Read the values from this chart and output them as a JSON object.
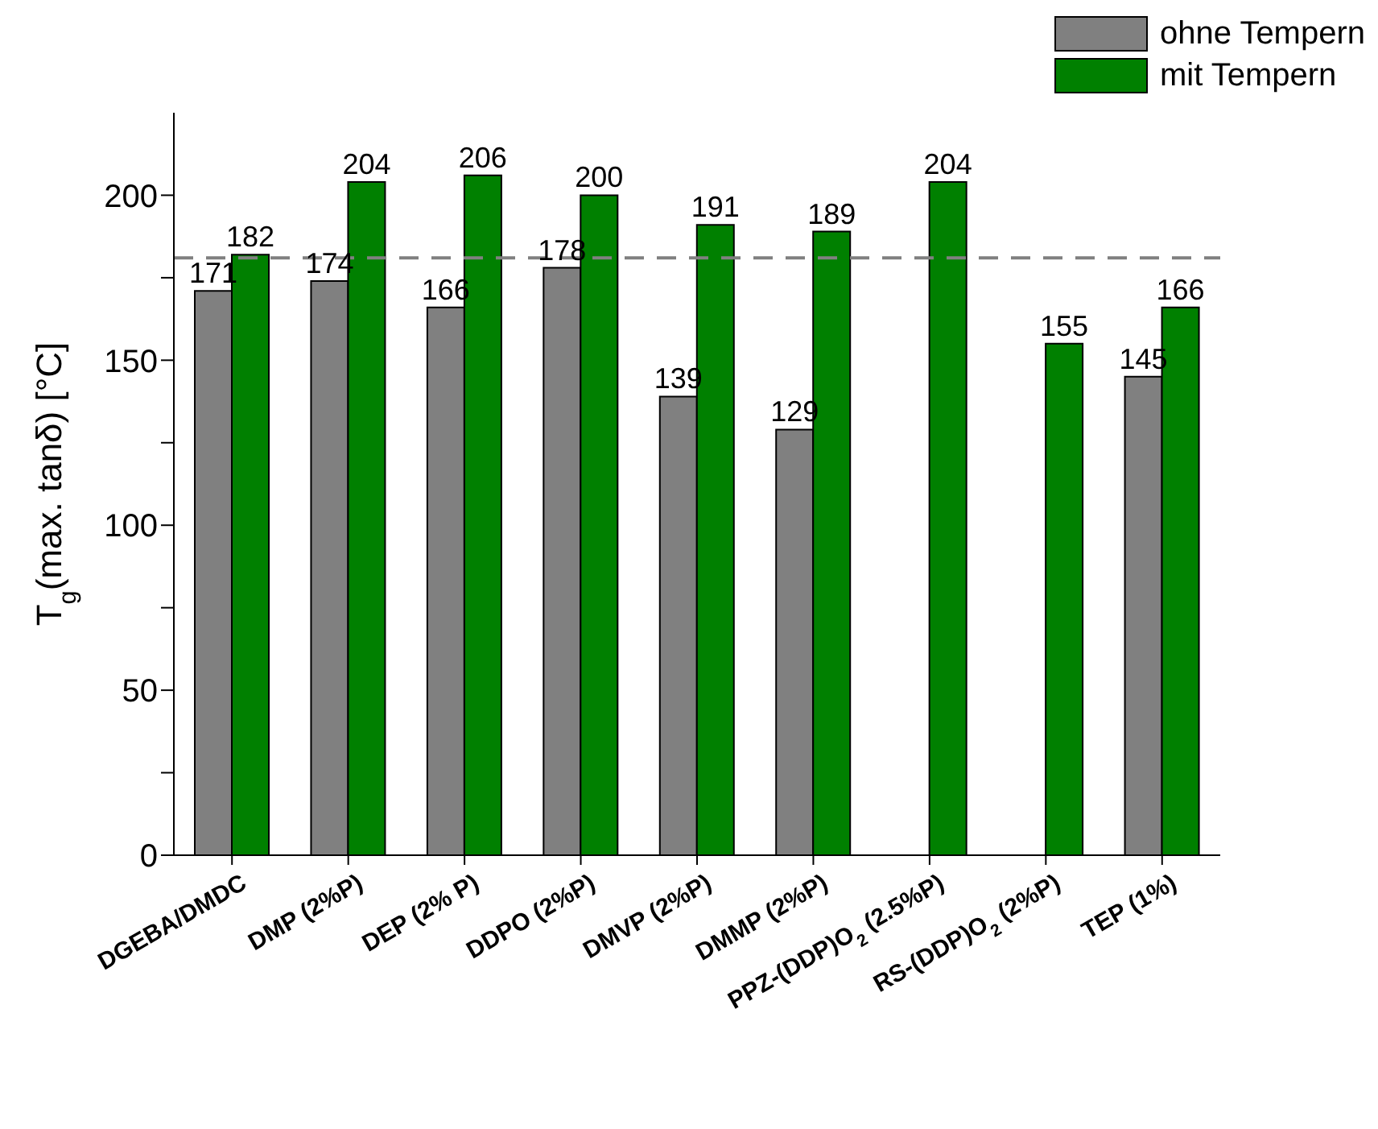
{
  "chart_data": {
    "type": "bar",
    "ylabel": "T$_{g}$(max. tanδ) [°C]",
    "categories": [
      "DGEBA/DMDC",
      "DMP (2%P)",
      "DEP (2% P)",
      "DDPO (2%P)",
      "DMVP (2%P)",
      "DMMP (2%P)",
      "PPZ-(DDP)O$_{2}$ (2.5%P)",
      "RS-(DDP)O$_{2}$ (2%P)",
      "TEP (1%)"
    ],
    "series": [
      {
        "name": "ohne Tempern",
        "color": "#808080",
        "values": [
          171,
          174,
          166,
          178,
          139,
          129,
          null,
          null,
          145
        ]
      },
      {
        "name": "mit Tempern",
        "color": "#008000",
        "values": [
          182,
          204,
          206,
          200,
          191,
          189,
          204,
          155,
          166
        ]
      }
    ],
    "ylim": [
      0,
      225
    ],
    "yticks": [
      0,
      {
        "value": 25,
        "label": null
      },
      50,
      {
        "value": 75,
        "label": null
      },
      100,
      {
        "value": 125,
        "label": null
      },
      150,
      {
        "value": 175,
        "label": null
      },
      200
    ],
    "ref_lines": [
      {
        "axis": "y",
        "value": 181,
        "color": "#808080",
        "line_style": "dashed"
      }
    ],
    "data_labels": true,
    "legend": "top right",
    "grid": false
  }
}
